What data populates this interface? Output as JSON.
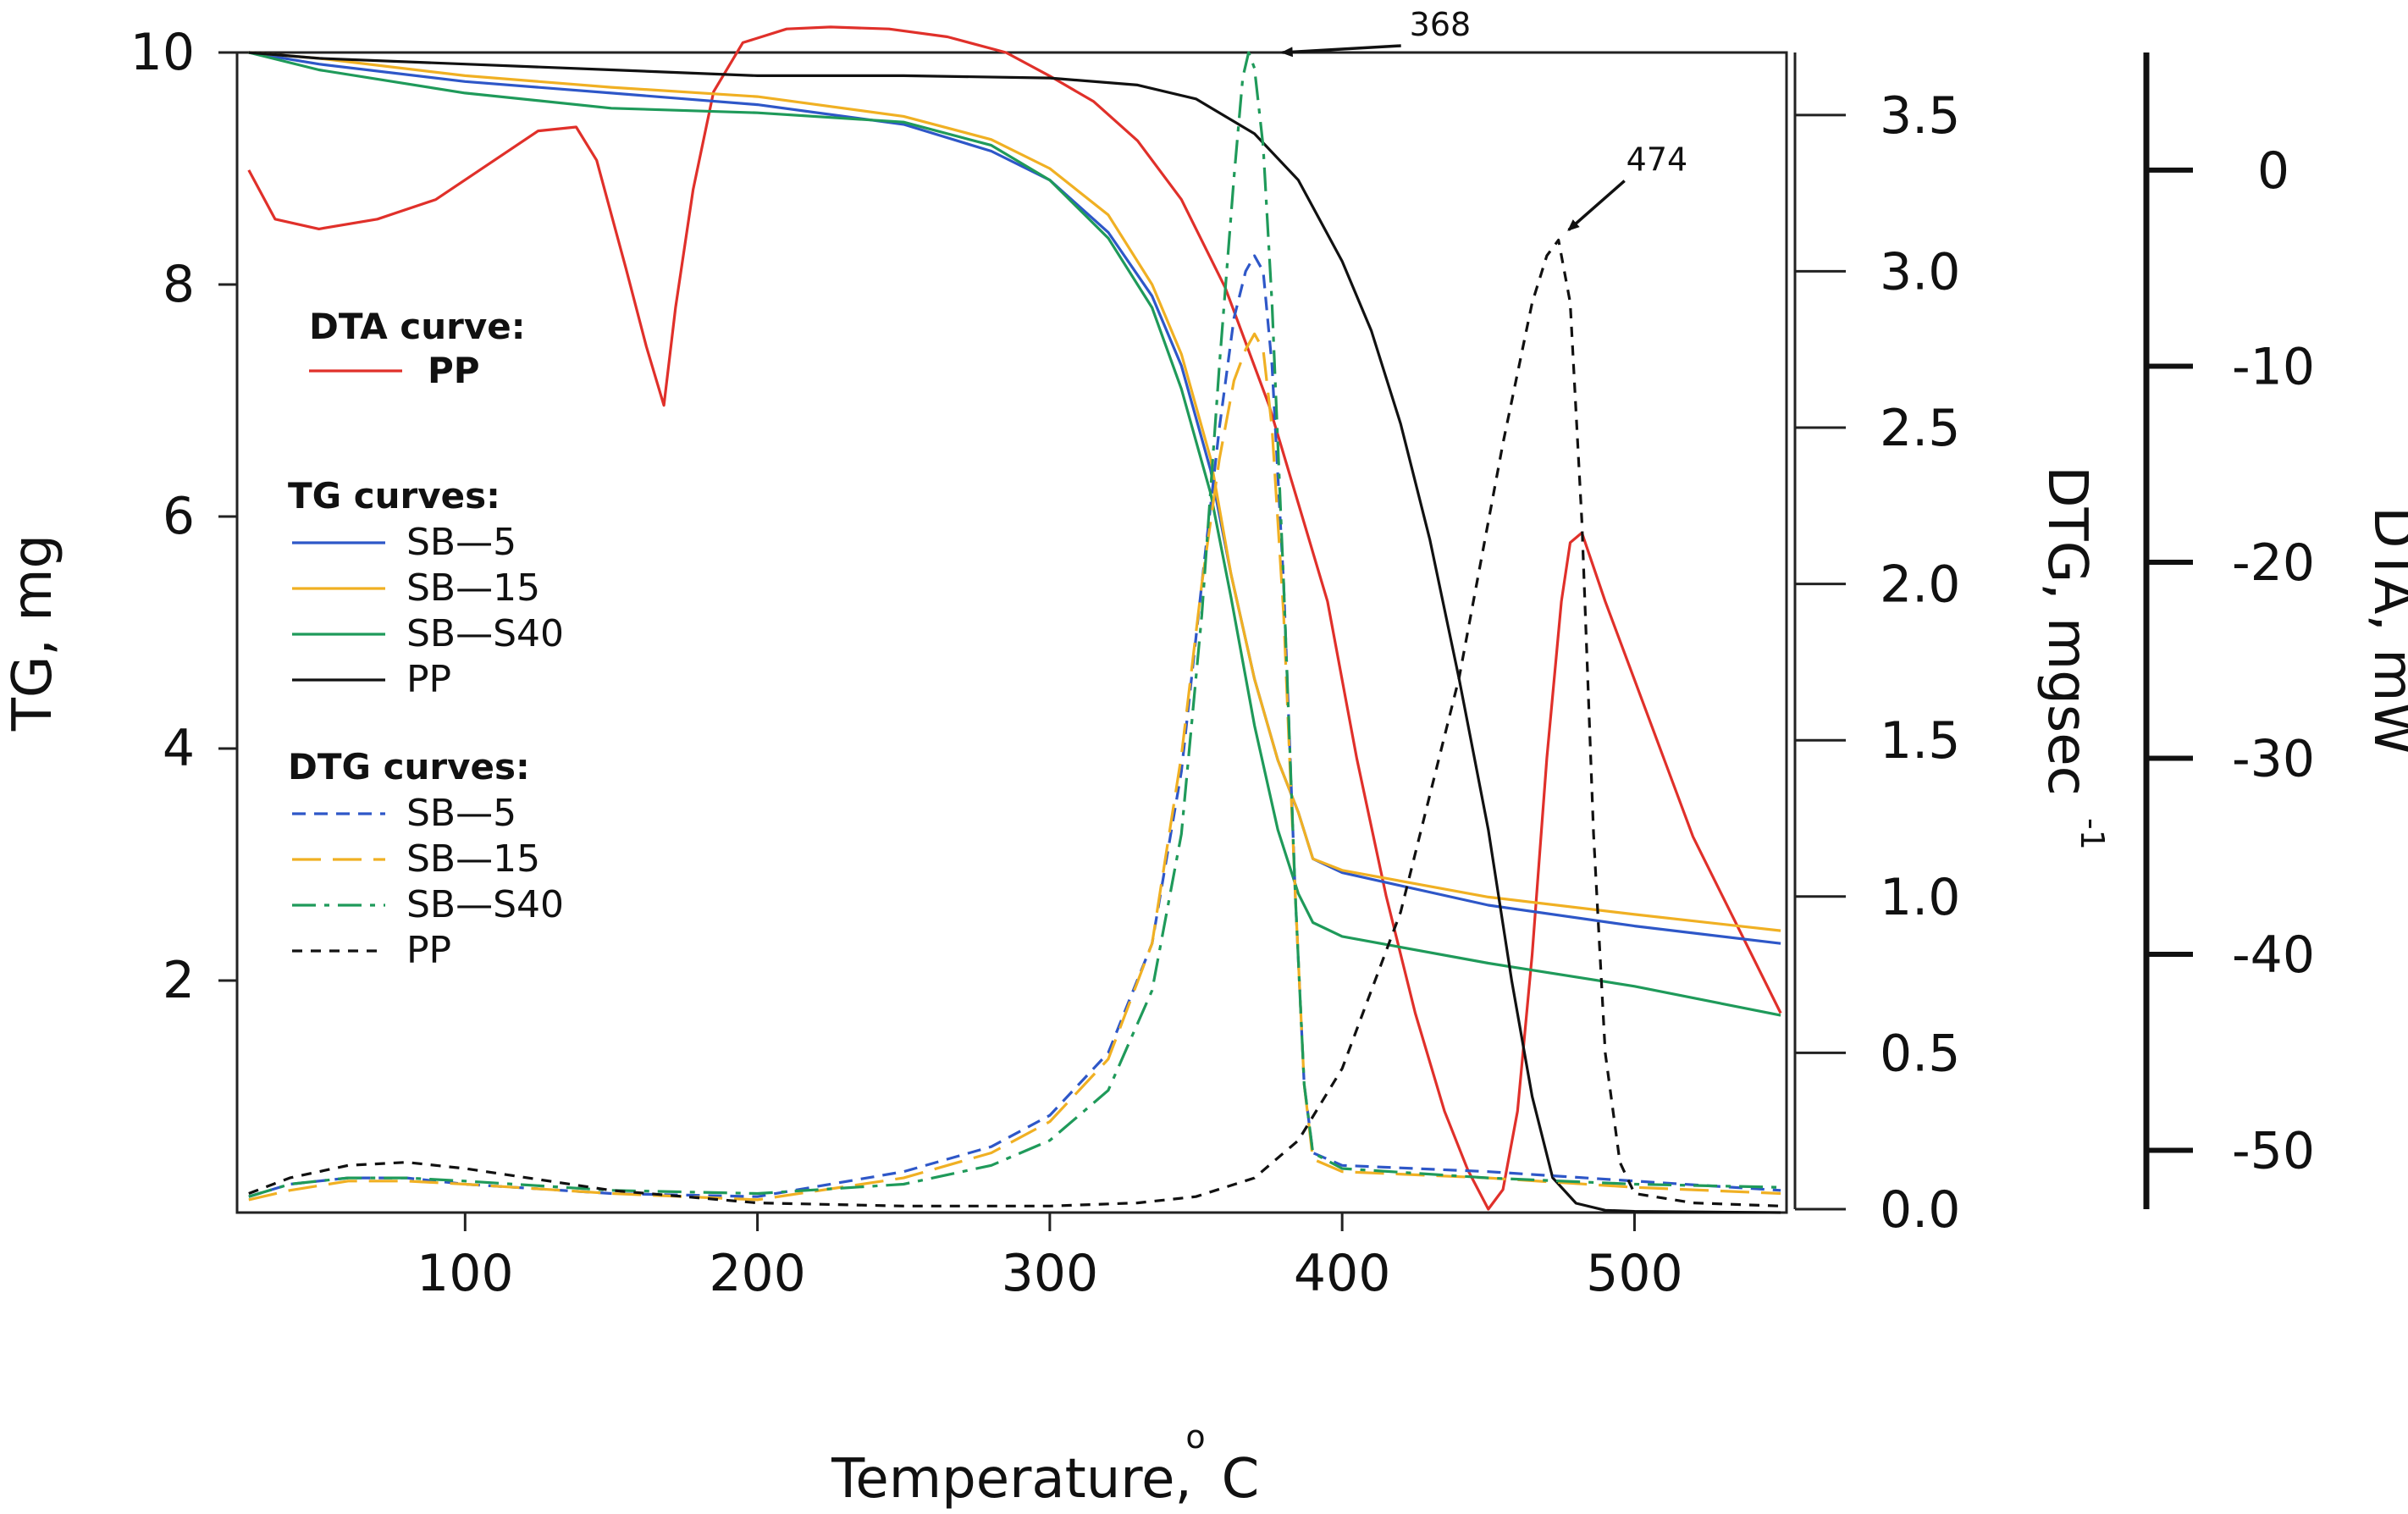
{
  "chart_data": {
    "type": "line",
    "title": "",
    "xlabel": "Temperature,",
    "xlabel_unit_superscript": "o",
    "xlabel_unit": "C",
    "xlim": [
      22,
      552
    ],
    "xticks": [
      100,
      200,
      300,
      400,
      500
    ],
    "axes": {
      "tg": {
        "label": "TG, mg",
        "ylim": [
          0,
          10
        ],
        "ticks": [
          2,
          4,
          6,
          8,
          10
        ]
      },
      "dtg": {
        "label": "DTG, mgsec",
        "label_superscript": "-1",
        "ylim": [
          0,
          3.7
        ],
        "ticks": [
          "0.0",
          "0.5",
          "1.0",
          "1.5",
          "2.0",
          "2.5",
          "3.0",
          "3.5"
        ]
      },
      "dta": {
        "label": "DTA, mW",
        "ylim": [
          -53,
          6
        ],
        "ticks": [
          "0",
          "-10",
          "-20",
          "-30",
          "-40",
          "-50"
        ]
      }
    },
    "legend": {
      "dta_title": "DTA curve:",
      "tg_title": "TG curves:",
      "dtg_title": "DTG curves:"
    },
    "series": [
      {
        "name": "PP",
        "group": "DTA",
        "axis": "dta",
        "color": "#e0302a",
        "style": "solid",
        "x": [
          26,
          35,
          50,
          70,
          90,
          110,
          125,
          138,
          145,
          155,
          162,
          168,
          172,
          178,
          185,
          195,
          210,
          225,
          245,
          265,
          285,
          300,
          315,
          330,
          345,
          360,
          375,
          385,
          395,
          405,
          415,
          425,
          435,
          443,
          450,
          455,
          460,
          465,
          470,
          475,
          478,
          482,
          490,
          500,
          510,
          520,
          530,
          540,
          550
        ],
        "y": [
          0,
          -2.5,
          -3.0,
          -2.5,
          -1.5,
          0.5,
          2,
          2.2,
          0.5,
          -5,
          -9,
          -12,
          -7,
          -1,
          4,
          6.5,
          7.2,
          7.3,
          7.2,
          6.8,
          6.0,
          4.8,
          3.5,
          1.5,
          -1.5,
          -6,
          -12,
          -17,
          -22,
          -30,
          -37,
          -43,
          -48,
          -51,
          -53,
          -52,
          -48,
          -40,
          -30,
          -22,
          -19,
          -18.5,
          -22,
          -26,
          -30,
          -34,
          -37,
          -40,
          -43
        ]
      },
      {
        "name": "SB—5",
        "group": "TG",
        "axis": "tg",
        "color": "#2e57c8",
        "style": "solid",
        "x": [
          26,
          50,
          100,
          150,
          200,
          250,
          280,
          300,
          320,
          335,
          345,
          355,
          362,
          370,
          378,
          385,
          390,
          400,
          450,
          500,
          550
        ],
        "y": [
          10,
          9.9,
          9.75,
          9.65,
          9.55,
          9.38,
          9.15,
          8.9,
          8.45,
          7.9,
          7.3,
          6.4,
          5.5,
          4.6,
          3.9,
          3.45,
          3.05,
          2.93,
          2.65,
          2.47,
          2.32
        ]
      },
      {
        "name": "SB—15",
        "group": "TG",
        "axis": "tg",
        "color": "#f0b023",
        "style": "solid",
        "x": [
          26,
          50,
          100,
          150,
          200,
          250,
          280,
          300,
          320,
          335,
          345,
          355,
          362,
          370,
          378,
          385,
          390,
          400,
          450,
          500,
          550
        ],
        "y": [
          10,
          9.95,
          9.8,
          9.7,
          9.62,
          9.45,
          9.25,
          9.0,
          8.6,
          8.0,
          7.4,
          6.5,
          5.5,
          4.6,
          3.9,
          3.45,
          3.05,
          2.95,
          2.72,
          2.57,
          2.43
        ]
      },
      {
        "name": "SB—S40",
        "group": "TG",
        "axis": "tg",
        "color": "#1f9a5a",
        "style": "solid",
        "x": [
          26,
          50,
          100,
          150,
          200,
          250,
          280,
          300,
          320,
          335,
          345,
          355,
          362,
          370,
          378,
          385,
          390,
          400,
          450,
          500,
          550
        ],
        "y": [
          10,
          9.85,
          9.65,
          9.52,
          9.48,
          9.4,
          9.2,
          8.9,
          8.4,
          7.8,
          7.1,
          6.2,
          5.3,
          4.2,
          3.3,
          2.75,
          2.5,
          2.38,
          2.15,
          1.95,
          1.7
        ]
      },
      {
        "name": "PP",
        "group": "TG",
        "axis": "tg",
        "color": "#111111",
        "style": "solid",
        "x": [
          26,
          50,
          100,
          150,
          200,
          250,
          300,
          330,
          350,
          370,
          385,
          400,
          410,
          420,
          430,
          440,
          450,
          458,
          465,
          472,
          480,
          490,
          500,
          550
        ],
        "y": [
          10,
          9.95,
          9.9,
          9.85,
          9.8,
          9.8,
          9.78,
          9.72,
          9.6,
          9.3,
          8.9,
          8.2,
          7.6,
          6.8,
          5.8,
          4.6,
          3.3,
          2.0,
          1.0,
          0.3,
          0.08,
          0.02,
          0.01,
          0
        ]
      },
      {
        "name": "SB—5",
        "group": "DTG",
        "axis": "dtg",
        "color": "#2e57c8",
        "style": "dash",
        "x": [
          26,
          40,
          60,
          80,
          100,
          150,
          200,
          250,
          280,
          300,
          320,
          335,
          345,
          352,
          358,
          363,
          367,
          370,
          373,
          376,
          380,
          384,
          387,
          390,
          400,
          450,
          500,
          550
        ],
        "y": [
          0.04,
          0.08,
          0.1,
          0.1,
          0.08,
          0.05,
          0.04,
          0.12,
          0.2,
          0.3,
          0.5,
          0.85,
          1.4,
          2.0,
          2.5,
          2.85,
          3.0,
          3.05,
          3.0,
          2.7,
          2.0,
          1.0,
          0.4,
          0.18,
          0.14,
          0.12,
          0.09,
          0.06
        ]
      },
      {
        "name": "SB—15",
        "group": "DTG",
        "axis": "dtg",
        "color": "#f0b023",
        "style": "longdash",
        "x": [
          26,
          40,
          60,
          80,
          100,
          150,
          200,
          250,
          280,
          300,
          320,
          335,
          345,
          352,
          358,
          363,
          367,
          370,
          373,
          376,
          380,
          384,
          387,
          390,
          400,
          450,
          500,
          550
        ],
        "y": [
          0.03,
          0.06,
          0.09,
          0.09,
          0.08,
          0.05,
          0.03,
          0.1,
          0.18,
          0.28,
          0.48,
          0.85,
          1.45,
          2.0,
          2.4,
          2.65,
          2.75,
          2.8,
          2.75,
          2.5,
          1.9,
          1.0,
          0.4,
          0.16,
          0.12,
          0.1,
          0.07,
          0.05
        ]
      },
      {
        "name": "SB—S40",
        "group": "DTG",
        "axis": "dtg",
        "color": "#1f9a5a",
        "style": "dashdot",
        "x": [
          26,
          40,
          60,
          80,
          100,
          150,
          200,
          250,
          280,
          300,
          320,
          335,
          345,
          352,
          358,
          363,
          366,
          368,
          370,
          373,
          376,
          380,
          384,
          387,
          390,
          400,
          450,
          500,
          550
        ],
        "y": [
          0.04,
          0.08,
          0.1,
          0.1,
          0.09,
          0.06,
          0.05,
          0.08,
          0.14,
          0.22,
          0.38,
          0.7,
          1.2,
          1.9,
          2.7,
          3.3,
          3.62,
          3.7,
          3.65,
          3.4,
          2.9,
          2.0,
          1.0,
          0.4,
          0.18,
          0.13,
          0.1,
          0.08,
          0.07
        ]
      },
      {
        "name": "PP",
        "group": "DTG",
        "axis": "dtg",
        "color": "#111111",
        "style": "shortdash",
        "x": [
          26,
          40,
          60,
          80,
          100,
          150,
          200,
          250,
          300,
          330,
          350,
          370,
          385,
          400,
          420,
          440,
          455,
          465,
          470,
          474,
          478,
          482,
          486,
          490,
          495,
          500,
          520,
          550
        ],
        "y": [
          0.05,
          0.1,
          0.14,
          0.15,
          0.13,
          0.06,
          0.02,
          0.01,
          0.01,
          0.02,
          0.04,
          0.1,
          0.22,
          0.45,
          0.95,
          1.7,
          2.45,
          2.9,
          3.05,
          3.1,
          2.9,
          2.2,
          1.2,
          0.5,
          0.15,
          0.05,
          0.02,
          0.01
        ]
      }
    ],
    "annotations": [
      {
        "text": "368",
        "x": 368,
        "axis": "dtg",
        "y": 3.7
      },
      {
        "text": "474",
        "x": 474,
        "axis": "dtg",
        "y": 3.1
      }
    ]
  }
}
